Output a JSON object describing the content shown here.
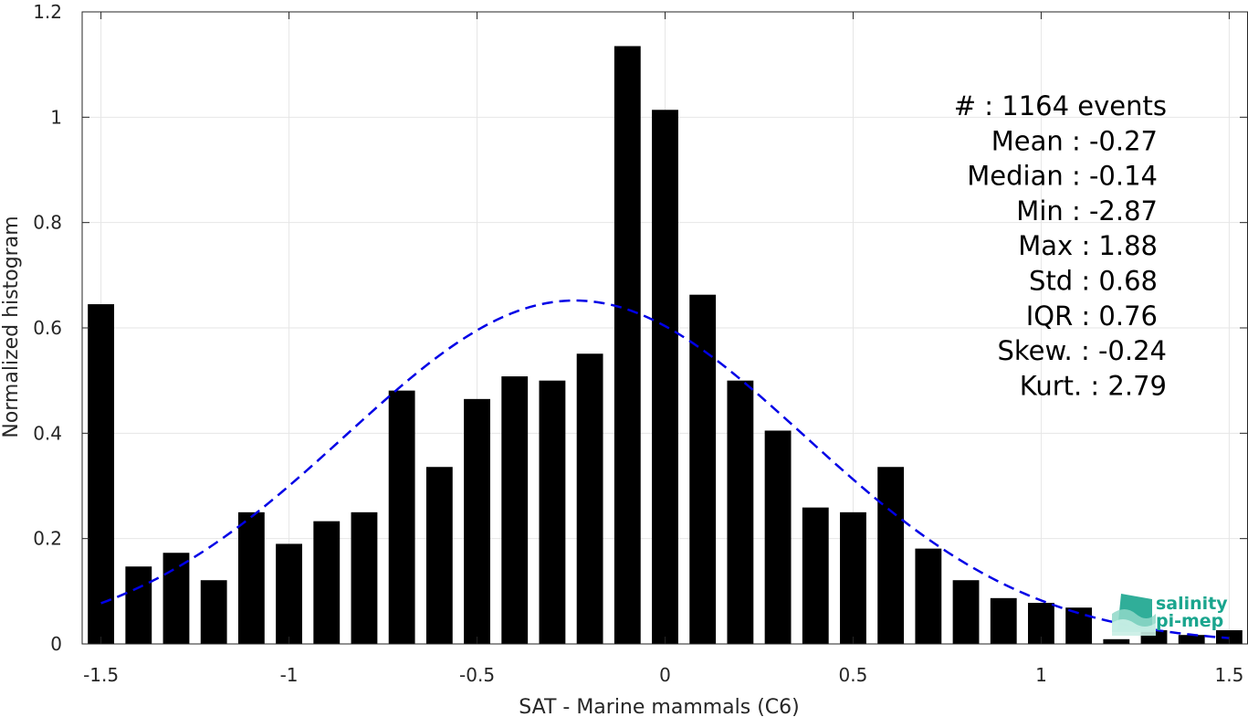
{
  "chart_data": {
    "type": "bar",
    "title": "",
    "xlabel": "SAT - Marine mammals (C6)",
    "ylabel": "Normalized histogram",
    "xlim": [
      -1.55,
      1.55
    ],
    "ylim": [
      0,
      1.2
    ],
    "grid": true,
    "x_ticks": [
      -1.5,
      -1,
      -0.5,
      0,
      0.5,
      1,
      1.5
    ],
    "x_tick_labels": [
      "-1.5",
      "-1",
      "-0.5",
      "0",
      "0.5",
      "1",
      "1.5"
    ],
    "y_ticks": [
      0,
      0.2,
      0.4,
      0.6,
      0.8,
      1,
      1.2
    ],
    "y_tick_labels": [
      "0",
      "0.2",
      "0.4",
      "0.6",
      "0.8",
      "1",
      "1.2"
    ],
    "bin_width": 0.1,
    "bar_fraction": 0.7,
    "bar_color": "#000000",
    "x": [
      -1.5,
      -1.4,
      -1.3,
      -1.2,
      -1.1,
      -1.0,
      -0.9,
      -0.8,
      -0.7,
      -0.6,
      -0.5,
      -0.4,
      -0.3,
      -0.2,
      -0.1,
      0.0,
      0.1,
      0.2,
      0.3,
      0.4,
      0.5,
      0.6,
      0.7,
      0.8,
      0.9,
      1.0,
      1.1,
      1.2,
      1.3,
      1.4,
      1.5
    ],
    "values": [
      0.645,
      0.147,
      0.173,
      0.121,
      0.25,
      0.19,
      0.233,
      0.25,
      0.481,
      0.336,
      0.465,
      0.508,
      0.5,
      0.551,
      1.135,
      1.014,
      0.663,
      0.5,
      0.405,
      0.259,
      0.25,
      0.336,
      0.181,
      0.121,
      0.087,
      0.078,
      0.069,
      0.009,
      0.026,
      0.017,
      0.026
    ],
    "fit_curve": {
      "type": "normal",
      "mean": -0.24,
      "std": 0.61,
      "peak": 0.652,
      "color": "#0000e6",
      "style": "dashed"
    },
    "stats": [
      {
        "label": "#  : 1164 events"
      },
      {
        "label": "Mean : -0.27"
      },
      {
        "label": "Median : -0.14"
      },
      {
        "label": "Min : -2.87"
      },
      {
        "label": "Max : 1.88"
      },
      {
        "label": "Std : 0.68"
      },
      {
        "label": "IQR : 0.76"
      },
      {
        "label": "Skew. : -0.24"
      },
      {
        "label": "Kurt. : 2.79"
      }
    ]
  },
  "logo": {
    "line1": "salinity",
    "line2": "pi-mep",
    "color": "#1aa58e"
  }
}
